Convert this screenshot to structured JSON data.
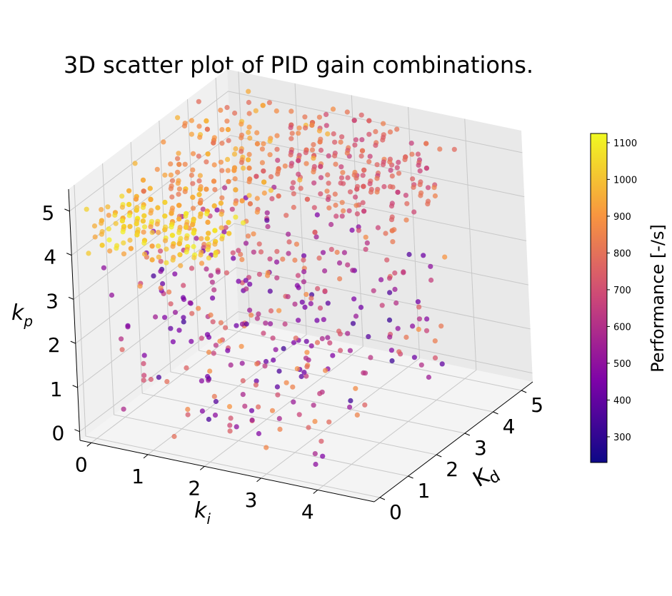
{
  "title": "3D scatter plot of PID gain combinations.",
  "chart_data": {
    "type": "scatter",
    "subtype": "3d",
    "title": "3D scatter plot of PID gain combinations.",
    "axes": {
      "x": {
        "label": "k_i",
        "ticks": [
          "0",
          "1",
          "2",
          "3",
          "4"
        ],
        "range": [
          -0.2,
          5
        ]
      },
      "y": {
        "label": "K_d",
        "ticks": [
          "0",
          "1",
          "2",
          "3",
          "4",
          "5"
        ],
        "range": [
          -0.2,
          5.4
        ]
      },
      "z": {
        "label": "k_p",
        "ticks": [
          "0",
          "1",
          "2",
          "3",
          "4",
          "5"
        ],
        "range": [
          -0.2,
          5.5
        ]
      }
    },
    "colorbar": {
      "label": "Performance [-/s]",
      "colormap": "plasma",
      "range": [
        230,
        1125
      ],
      "ticks": [
        "300",
        "400",
        "500",
        "600",
        "700",
        "800",
        "900",
        "1000",
        "1100"
      ]
    },
    "grid": true,
    "point_count_note": "",
    "clusters": [
      {
        "ki": [
          0,
          2.0
        ],
        "kd": [
          0,
          1.5
        ],
        "kp": [
          4.0,
          5.0
        ],
        "performance": [
          900,
          1110
        ]
      },
      {
        "ki": [
          0,
          2.0
        ],
        "kd": [
          1.0,
          5.0
        ],
        "kp": [
          4.5,
          5.5
        ],
        "performance": [
          780,
          1000
        ]
      },
      {
        "ki": [
          1.5,
          4.0
        ],
        "kd": [
          2.5,
          5.0
        ],
        "kp": [
          4.0,
          5.5
        ],
        "performance": [
          650,
          850
        ]
      },
      {
        "ki": [
          0,
          4.0
        ],
        "kd": [
          0,
          5.0
        ],
        "kp": [
          0,
          3.5
        ],
        "performance": [
          420,
          900
        ]
      }
    ]
  },
  "colors": {
    "pane_left": "#f0f0f0",
    "pane_right": "#e9e9e9",
    "pane_floor": "#f4f4f4",
    "grid": "#c8c8c8"
  }
}
